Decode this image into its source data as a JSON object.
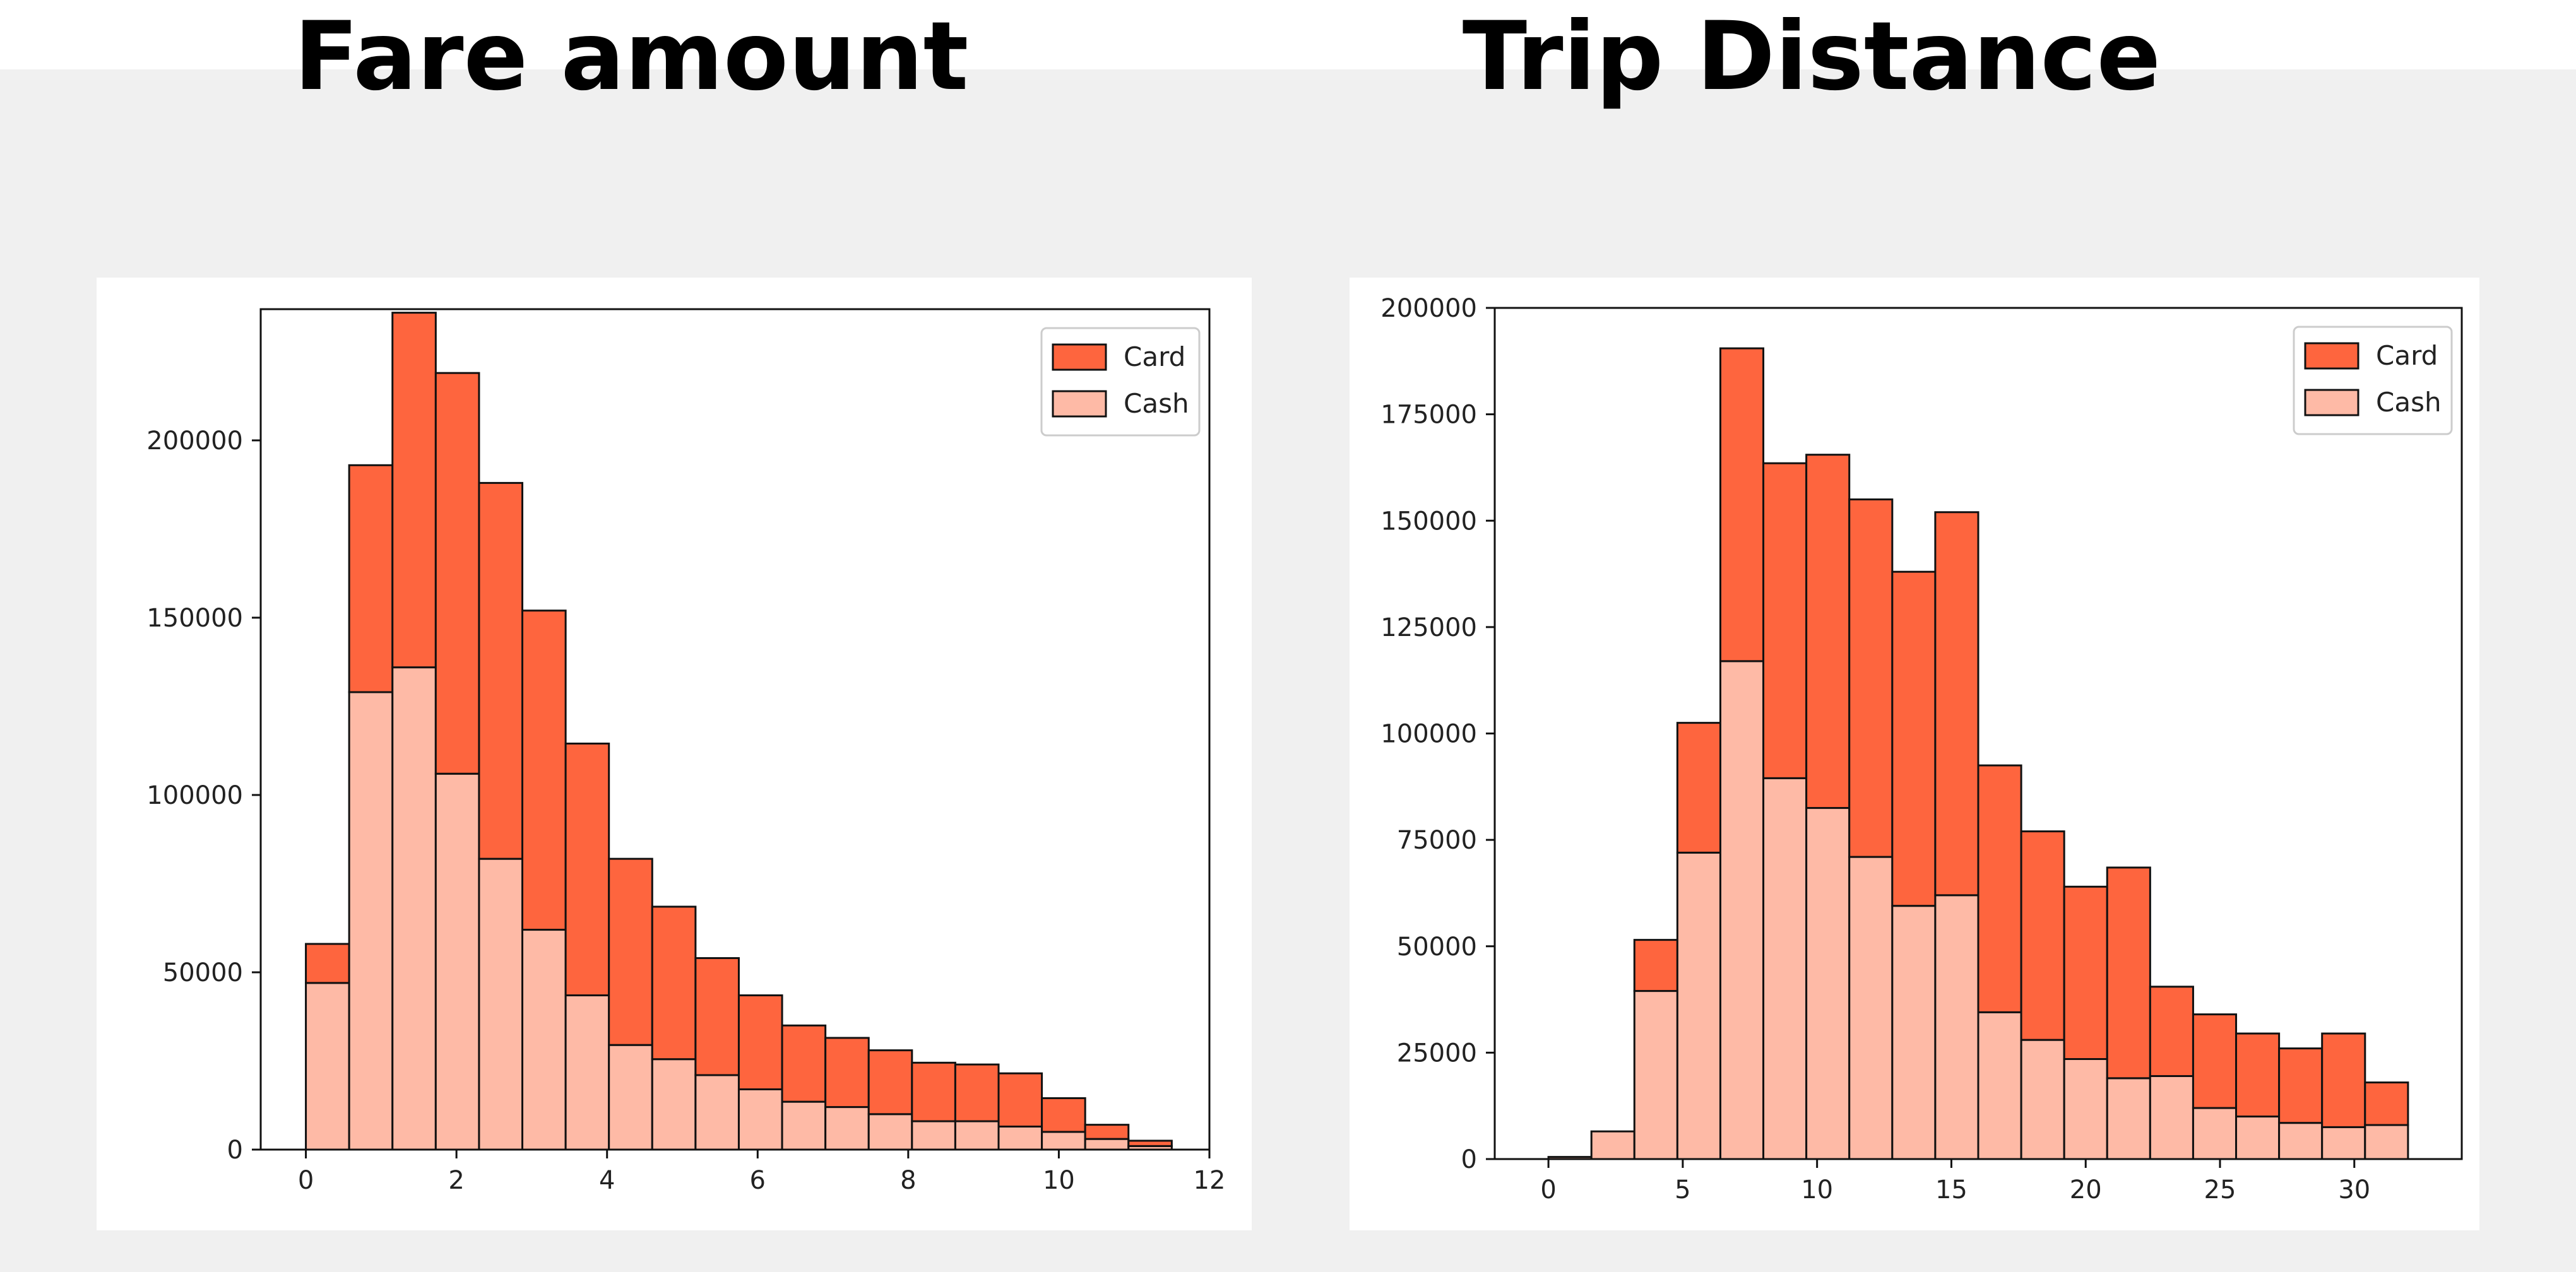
{
  "titles": {
    "left": "Fare amount",
    "right": "Trip Distance"
  },
  "colors": {
    "card": "#fe653e",
    "cash": "#febaa6",
    "edge": "#111111"
  },
  "chart_data": [
    {
      "type": "bar",
      "subtype": "stacked-histogram",
      "title": "Fare amount",
      "xlim": [
        -0.6,
        12
      ],
      "ylim": [
        0,
        237000
      ],
      "xticks": [
        0,
        2,
        4,
        6,
        8,
        10,
        12
      ],
      "yticks": [
        0,
        50000,
        100000,
        150000,
        200000
      ],
      "bin_width": 0.575,
      "bin_starts": [
        0,
        0.575,
        1.15,
        1.725,
        2.3,
        2.875,
        3.45,
        4.025,
        4.6,
        5.175,
        5.75,
        6.325,
        6.9,
        7.475,
        8.05,
        8.625,
        9.2,
        9.775,
        10.35,
        10.925
      ],
      "series": [
        {
          "name": "Cash",
          "values": [
            47000,
            129000,
            136000,
            106000,
            82000,
            62000,
            43500,
            29500,
            25500,
            21000,
            17000,
            13500,
            12000,
            10000,
            8000,
            8000,
            6500,
            5000,
            3000,
            1000
          ]
        },
        {
          "name": "Card",
          "values": [
            11000,
            64000,
            100000,
            113000,
            106000,
            90000,
            71000,
            52500,
            43000,
            33000,
            26500,
            21500,
            19500,
            18000,
            16500,
            16000,
            15000,
            9500,
            4000,
            1500
          ]
        }
      ],
      "legend": [
        "Card",
        "Cash"
      ],
      "legend_position": "top-right",
      "grid": false
    },
    {
      "type": "bar",
      "subtype": "stacked-histogram",
      "title": "Trip Distance",
      "xlim": [
        -2,
        34
      ],
      "ylim": [
        0,
        200000
      ],
      "xticks": [
        0,
        5,
        10,
        15,
        20,
        25,
        30
      ],
      "yticks": [
        0,
        25000,
        50000,
        75000,
        100000,
        125000,
        150000,
        175000,
        200000
      ],
      "bin_width": 1.6,
      "bin_starts": [
        0,
        1.6,
        3.2,
        4.8,
        6.4,
        8.0,
        9.6,
        11.2,
        12.8,
        14.4,
        16.0,
        17.6,
        19.2,
        20.8,
        22.4,
        24.0,
        25.6,
        27.2,
        28.8,
        30.4
      ],
      "series": [
        {
          "name": "Cash",
          "values": [
            500,
            6500,
            39500,
            72000,
            117000,
            89500,
            82500,
            71000,
            59500,
            62000,
            34500,
            28000,
            23500,
            19000,
            19500,
            12000,
            10000,
            8500,
            7500,
            8000
          ]
        },
        {
          "name": "Card",
          "values": [
            0,
            0,
            12000,
            30500,
            73500,
            74000,
            83000,
            84000,
            78500,
            90000,
            58000,
            49000,
            40500,
            49500,
            21000,
            22000,
            19500,
            17500,
            22000,
            10000
          ]
        }
      ],
      "legend": [
        "Card",
        "Cash"
      ],
      "legend_position": "top-right",
      "grid": false
    }
  ]
}
